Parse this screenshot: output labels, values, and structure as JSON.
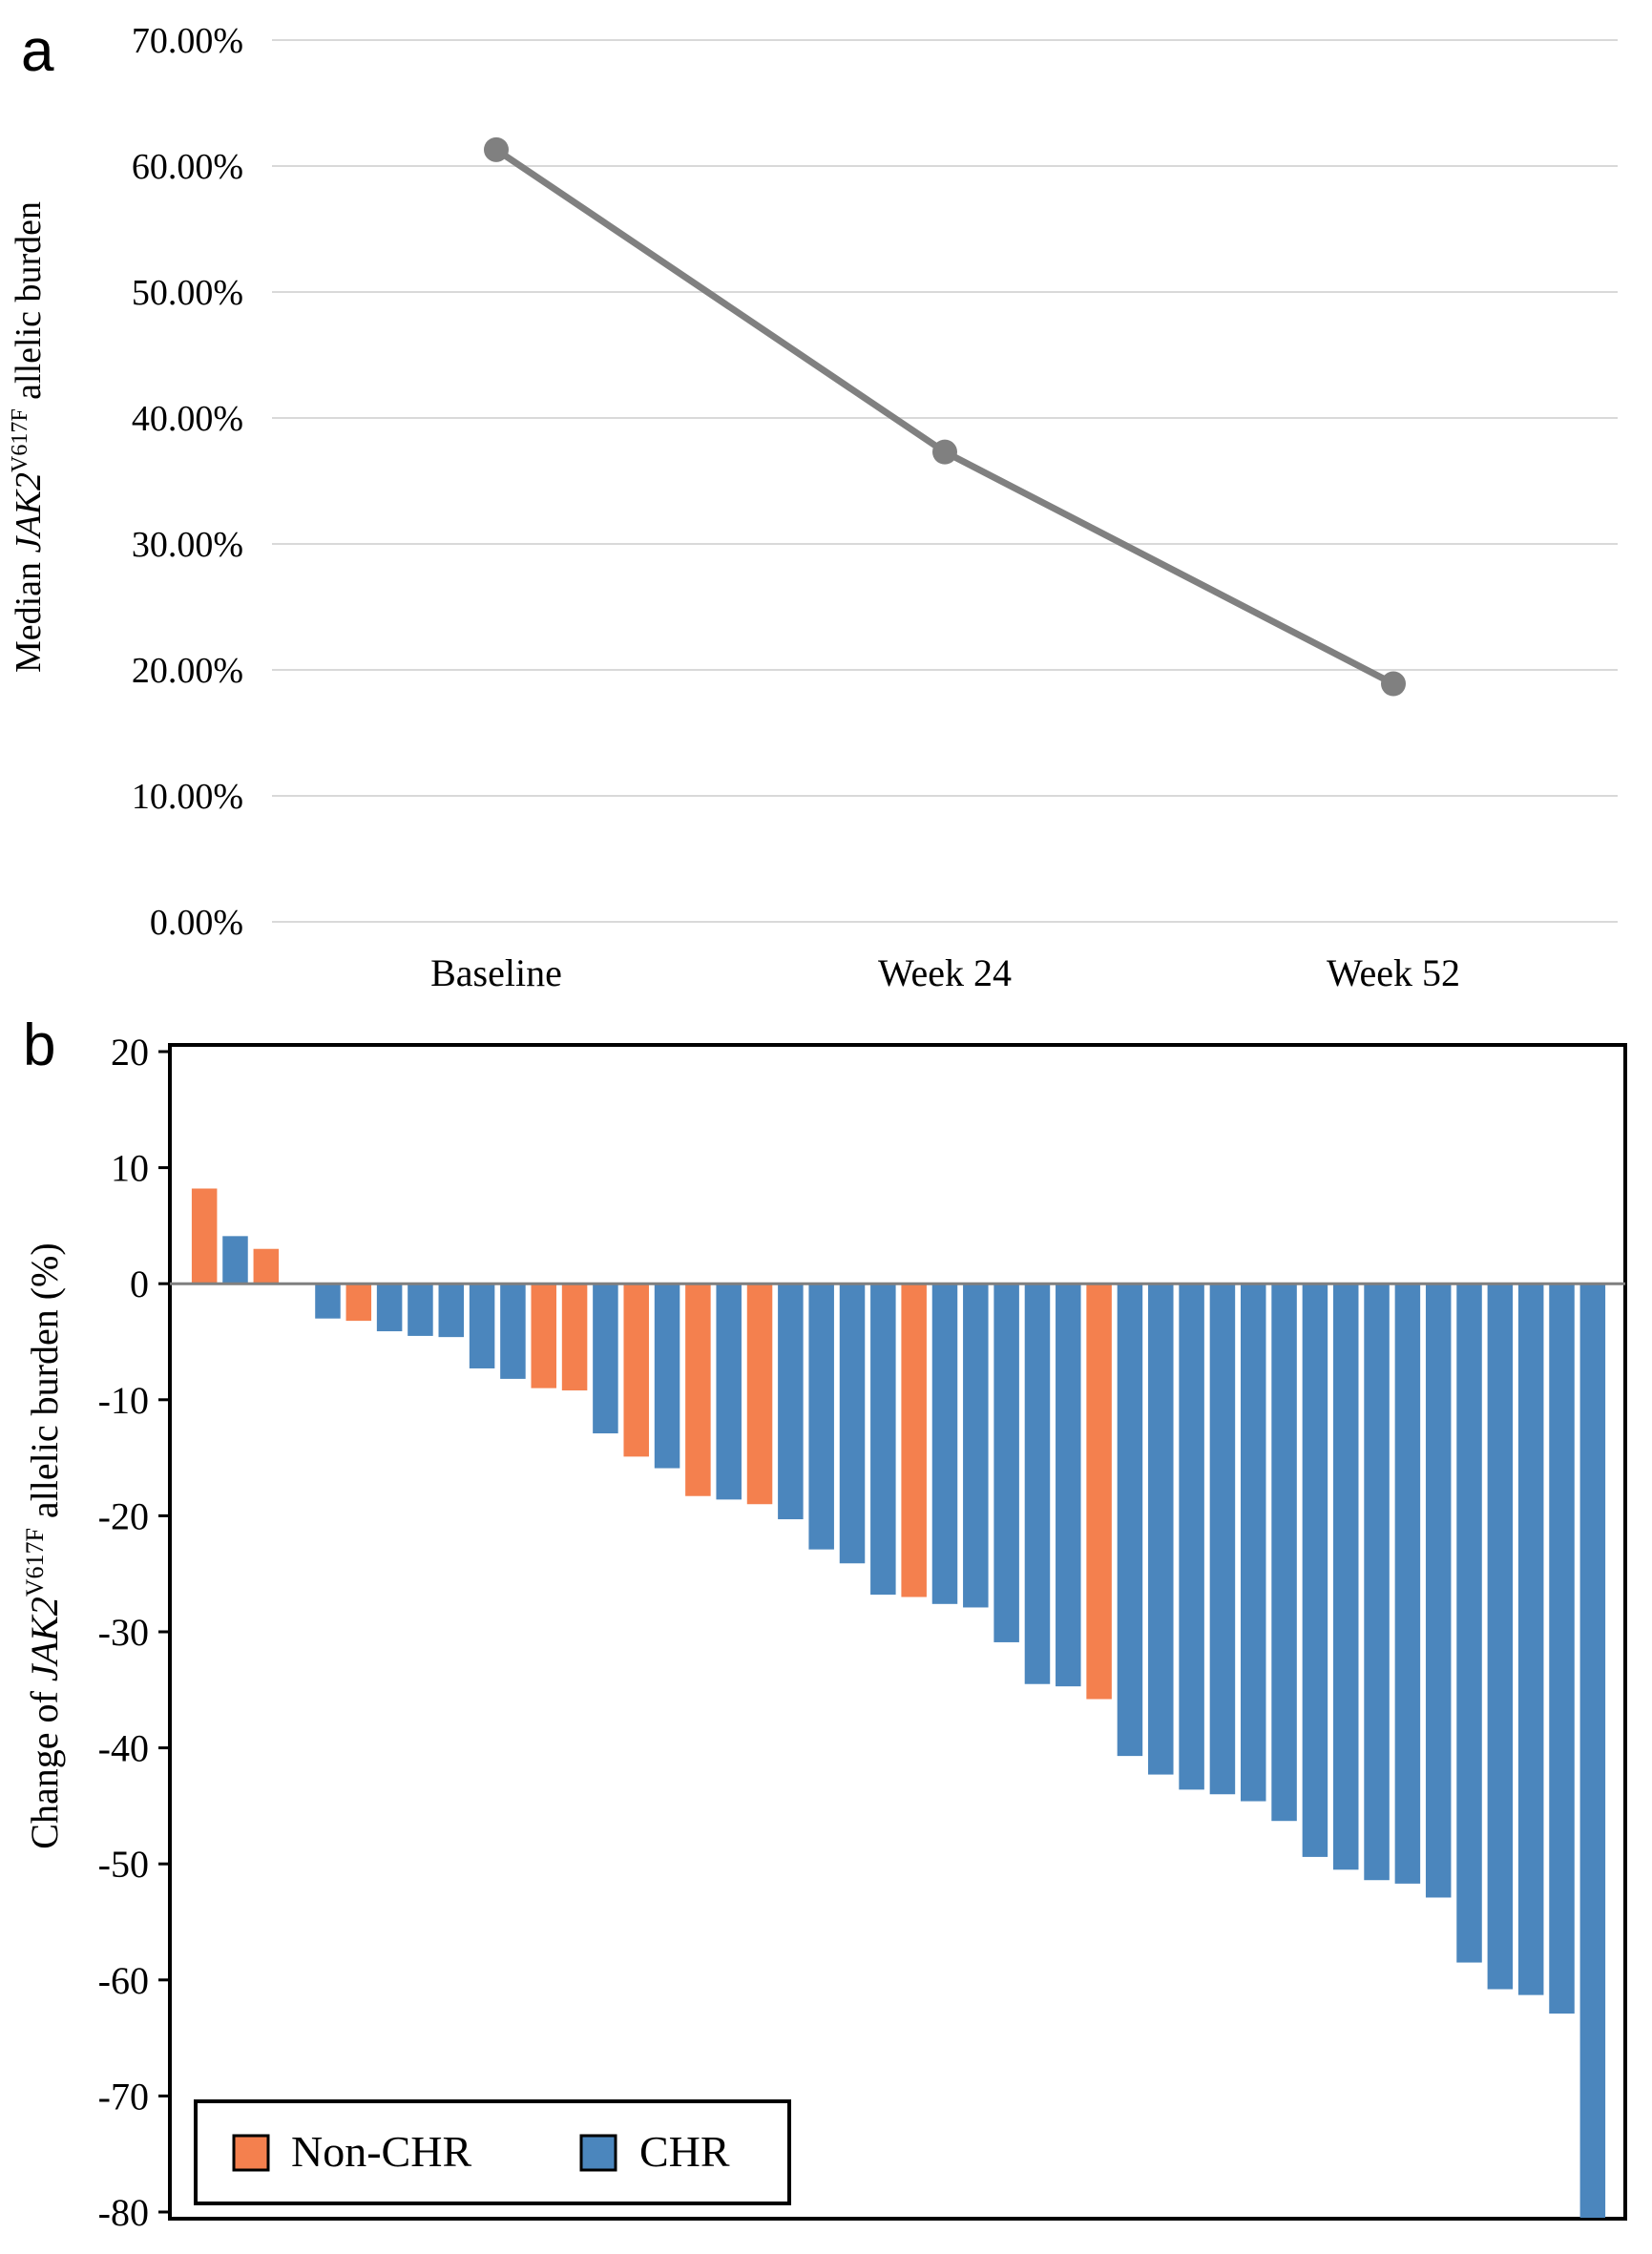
{
  "chart_data": [
    {
      "panel_label": "a",
      "type": "line",
      "title": "",
      "xlabel": "",
      "ylabel": {
        "prefix": "Median ",
        "gene": "JAK2",
        "superscript": "V617F",
        "suffix": " allelic burden"
      },
      "categories": [
        "Baseline",
        "Week 24",
        "Week 52"
      ],
      "series": [
        {
          "values": [
            61.3,
            37.3,
            18.9
          ],
          "color": "#808080"
        }
      ],
      "ylim": [
        0,
        70
      ],
      "yticks": [
        "0.00%",
        "10.00%",
        "20.00%",
        "30.00%",
        "40.00%",
        "50.00%",
        "60.00%",
        "70.00%"
      ],
      "grid": true,
      "gridline_color": "#d9d9d9"
    },
    {
      "panel_label": "b",
      "type": "bar",
      "title": "",
      "xlabel": "",
      "ylabel": {
        "prefix": "Change of ",
        "gene": "JAK2",
        "superscript": "V617F",
        "suffix": " allelic burden (%)"
      },
      "ylim": [
        -80,
        20
      ],
      "yticks": [
        "-80",
        "-70",
        "-60",
        "-50",
        "-40",
        "-30",
        "-20",
        "-10",
        "0",
        "10",
        "20"
      ],
      "grid": false,
      "colors": {
        "Non-CHR": "#f4804e",
        "CHR": "#4b86bd"
      },
      "legend": {
        "position": "bottom-left",
        "entries": [
          {
            "label": "Non-CHR",
            "color": "#f4804e"
          },
          {
            "label": "CHR",
            "color": "#4b86bd"
          }
        ]
      },
      "bars": [
        {
          "value": 8.2,
          "group": "Non-CHR"
        },
        {
          "value": 4.1,
          "group": "CHR"
        },
        {
          "value": 3.0,
          "group": "Non-CHR"
        },
        {
          "value": 0,
          "group": "CHR"
        },
        {
          "value": -3.0,
          "group": "CHR"
        },
        {
          "value": -3.2,
          "group": "Non-CHR"
        },
        {
          "value": -4.1,
          "group": "CHR"
        },
        {
          "value": -4.5,
          "group": "CHR"
        },
        {
          "value": -4.6,
          "group": "CHR"
        },
        {
          "value": -7.3,
          "group": "CHR"
        },
        {
          "value": -8.2,
          "group": "CHR"
        },
        {
          "value": -9.0,
          "group": "Non-CHR"
        },
        {
          "value": -9.2,
          "group": "Non-CHR"
        },
        {
          "value": -12.9,
          "group": "CHR"
        },
        {
          "value": -14.9,
          "group": "Non-CHR"
        },
        {
          "value": -15.9,
          "group": "CHR"
        },
        {
          "value": -18.3,
          "group": "Non-CHR"
        },
        {
          "value": -18.6,
          "group": "CHR"
        },
        {
          "value": -19.0,
          "group": "Non-CHR"
        },
        {
          "value": -20.3,
          "group": "CHR"
        },
        {
          "value": -22.9,
          "group": "CHR"
        },
        {
          "value": -24.1,
          "group": "CHR"
        },
        {
          "value": -26.8,
          "group": "CHR"
        },
        {
          "value": -27.0,
          "group": "Non-CHR"
        },
        {
          "value": -27.6,
          "group": "CHR"
        },
        {
          "value": -27.9,
          "group": "CHR"
        },
        {
          "value": -30.9,
          "group": "CHR"
        },
        {
          "value": -34.5,
          "group": "CHR"
        },
        {
          "value": -34.7,
          "group": "CHR"
        },
        {
          "value": -35.8,
          "group": "Non-CHR"
        },
        {
          "value": -40.7,
          "group": "CHR"
        },
        {
          "value": -42.3,
          "group": "CHR"
        },
        {
          "value": -43.6,
          "group": "CHR"
        },
        {
          "value": -44.0,
          "group": "CHR"
        },
        {
          "value": -44.6,
          "group": "CHR"
        },
        {
          "value": -46.3,
          "group": "CHR"
        },
        {
          "value": -49.4,
          "group": "CHR"
        },
        {
          "value": -50.5,
          "group": "CHR"
        },
        {
          "value": -51.4,
          "group": "CHR"
        },
        {
          "value": -51.7,
          "group": "CHR"
        },
        {
          "value": -52.9,
          "group": "CHR"
        },
        {
          "value": -58.5,
          "group": "CHR"
        },
        {
          "value": -60.8,
          "group": "CHR"
        },
        {
          "value": -61.3,
          "group": "CHR"
        },
        {
          "value": -62.9,
          "group": "CHR"
        },
        {
          "value": -80.5,
          "group": "CHR"
        }
      ]
    }
  ]
}
